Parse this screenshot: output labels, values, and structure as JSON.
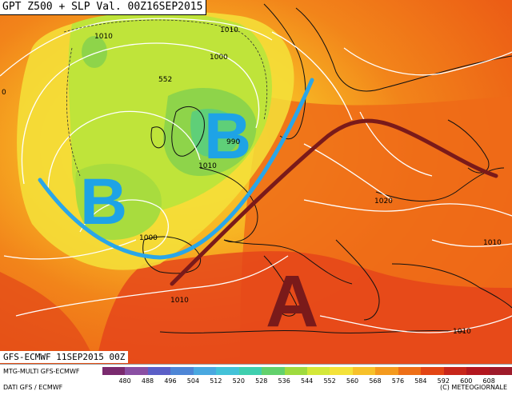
{
  "header": {
    "title": "GPT Z500 + SLP Val. 00Z16SEP2015"
  },
  "run_label": "GFS-ECMWF 11SEP2015 00Z",
  "footer": {
    "model": "MTG-MULTI GFS-ECMWF",
    "source": "DATI GFS / ECMWF",
    "copyright": "(C) METEOGIORNALE"
  },
  "legend": {
    "ticks": [
      "480",
      "488",
      "496",
      "504",
      "512",
      "520",
      "528",
      "536",
      "544",
      "552",
      "560",
      "568",
      "576",
      "584",
      "592",
      "600",
      "608"
    ],
    "colors": [
      "#7a2a6e",
      "#8a4fa3",
      "#5b5fc7",
      "#4e86d6",
      "#4aa8e0",
      "#43c2d8",
      "#3fcfae",
      "#62d16c",
      "#9fdb3f",
      "#d4e83a",
      "#f4e23a",
      "#f7c12a",
      "#f49a1e",
      "#ee6f17",
      "#e34514",
      "#c8261a",
      "#b3171f",
      "#9e1a2a"
    ]
  },
  "map": {
    "symbols": [
      {
        "letter": "B",
        "color": "#1ea3e6"
      },
      {
        "letter": "B",
        "color": "#1ea3e6"
      },
      {
        "letter": "A",
        "color": "#7a1a1a"
      }
    ],
    "isobars": [
      "1010",
      "1010",
      "1000",
      "552",
      "990",
      "1010",
      "1000",
      "1020",
      "1010",
      "1010",
      "1010",
      "0"
    ],
    "colors": {
      "trough": "#2aa6e8",
      "ridge": "#7a1a1a",
      "isobar": "#ffffff",
      "coast": "#111111"
    }
  }
}
